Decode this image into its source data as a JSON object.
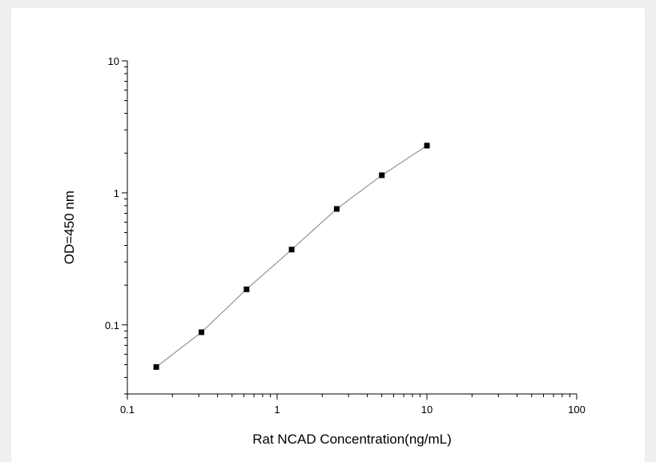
{
  "chart_data": {
    "type": "scatter",
    "title": "",
    "xlabel": "Rat NCAD Concentration(ng/mL)",
    "ylabel": "OD=450 nm",
    "x_scale": "log",
    "y_scale": "log",
    "xlim": [
      0.1,
      100
    ],
    "ylim": [
      0.03,
      10
    ],
    "x_ticks": [
      {
        "value": 0.1,
        "label": "0.1"
      },
      {
        "value": 1,
        "label": "1"
      },
      {
        "value": 10,
        "label": "10"
      },
      {
        "value": 100,
        "label": "100"
      }
    ],
    "y_ticks": [
      {
        "value": 0.1,
        "label": "0.1"
      },
      {
        "value": 1,
        "label": "1"
      },
      {
        "value": 10,
        "label": "10"
      }
    ],
    "grid": false,
    "legend": "none",
    "marker": "square",
    "connect_points": true,
    "series": [
      {
        "x": [
          0.156,
          0.3125,
          0.625,
          1.25,
          2.5,
          5,
          10
        ],
        "y": [
          0.048,
          0.088,
          0.186,
          0.372,
          0.756,
          1.36,
          2.28
        ]
      }
    ],
    "colors": {
      "marker": "#000000",
      "line": "#808080",
      "axis": "#000000"
    }
  }
}
